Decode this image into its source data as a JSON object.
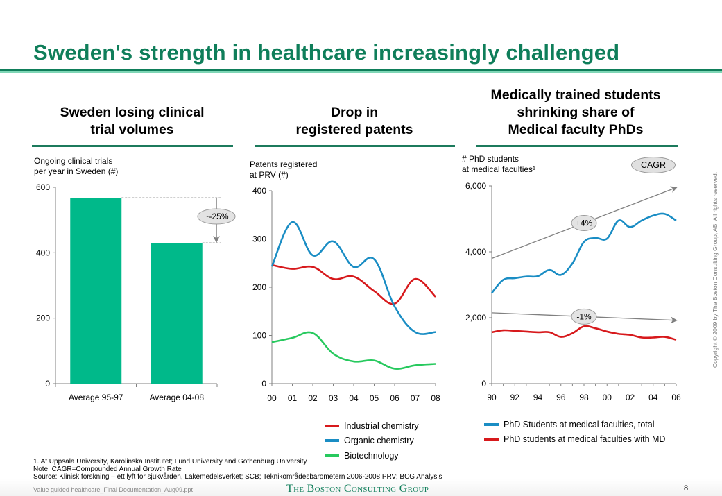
{
  "slide": {
    "title": "Sweden's strength in healthcare increasingly challenged",
    "page_number": "8",
    "file_name": "Value guided healthcare_Final Documentation_Aug09.ppt",
    "brand": "The Boston Consulting Group",
    "copyright": "Copyright © 2009 by The Boston Consulting Group, AB. All rights reserved.",
    "footnotes": [
      "1. At Uppsala University, Karolinska Institutet; Lund University and Gothenburg University",
      "Note: CAGR=Compounded Annual Growth Rate",
      "Source: Klinisk forskning – ett lyft för sjukvården, Läkemedelsverket; SCB; Teknikområdesbarometern 2006-2008 PRV; BCG Analysis"
    ],
    "colors": {
      "brand_green": "#0f7e5a",
      "bar_green": "#00b98a",
      "red": "#d7191c",
      "blue": "#1a8dc4",
      "green_line": "#27c95e"
    }
  },
  "panels": [
    {
      "heading_line1": "Sweden losing clinical",
      "heading_line2": "trial volumes",
      "ylabel_line1": "Ongoing clinical trials",
      "ylabel_line2": "per year in Sweden (#)"
    },
    {
      "heading_line1": "Drop in",
      "heading_line2": "registered patents",
      "ylabel_line1": "Patents registered",
      "ylabel_line2": "at PRV (#)"
    },
    {
      "heading_line1": "Medically trained students",
      "heading_line2": "shrinking share of",
      "heading_line3": "Medical faculty PhDs",
      "ylabel_line1": "# PhD students",
      "ylabel_line2": "at medical faculties¹",
      "cagr_label": "CAGR"
    }
  ],
  "chart_data": [
    {
      "type": "bar",
      "title": "Sweden losing clinical trial volumes",
      "ylabel": "Ongoing clinical trials per year in Sweden (#)",
      "categories": [
        "Average 95-97",
        "Average 04-08"
      ],
      "values": [
        568,
        430
      ],
      "ylim": [
        0,
        600
      ],
      "yticks": [
        0,
        200,
        400,
        600
      ],
      "ytick_labels": [
        "0",
        "200",
        "400",
        "600"
      ],
      "annotation": "~-25%",
      "grid": false
    },
    {
      "type": "line",
      "title": "Drop in registered patents",
      "ylabel": "Patents registered at PRV (#)",
      "x": [
        "00",
        "01",
        "02",
        "03",
        "04",
        "05",
        "06",
        "07",
        "08"
      ],
      "series": [
        {
          "name": "Industrial chemistry",
          "color": "#d7191c",
          "values": [
            246,
            238,
            242,
            217,
            222,
            192,
            166,
            217,
            180
          ]
        },
        {
          "name": "Organic chemistry",
          "color": "#1a8dc4",
          "values": [
            243,
            335,
            266,
            295,
            242,
            258,
            160,
            107,
            107
          ]
        },
        {
          "name": "Biotechnology",
          "color": "#27c95e",
          "values": [
            86,
            95,
            105,
            62,
            46,
            48,
            31,
            38,
            41
          ]
        }
      ],
      "ylim": [
        0,
        400
      ],
      "yticks": [
        0,
        100,
        200,
        300,
        400
      ],
      "ytick_labels": [
        "0",
        "100",
        "200",
        "300",
        "400"
      ],
      "legend": "bottom",
      "grid": false
    },
    {
      "type": "line",
      "title": "Medically trained students shrinking share of Medical faculty PhDs",
      "ylabel": "# PhD students at medical faculties¹",
      "x": [
        "90",
        "91",
        "92",
        "93",
        "94",
        "95",
        "96",
        "97",
        "98",
        "99",
        "00",
        "01",
        "02",
        "03",
        "04",
        "05",
        "06"
      ],
      "xtick_labels": [
        "90",
        "92",
        "94",
        "96",
        "98",
        "00",
        "02",
        "04",
        "06"
      ],
      "series": [
        {
          "name": "PhD Students at medical faculties, total",
          "color": "#1a8dc4",
          "values": [
            2750,
            3150,
            3200,
            3250,
            3260,
            3450,
            3300,
            3650,
            4300,
            4420,
            4400,
            4950,
            4750,
            4950,
            5100,
            5150,
            4950
          ]
        },
        {
          "name": "PhD students at medical faculties with MD",
          "color": "#d7191c",
          "values": [
            1560,
            1620,
            1600,
            1580,
            1560,
            1560,
            1420,
            1530,
            1740,
            1680,
            1580,
            1510,
            1480,
            1400,
            1400,
            1420,
            1330
          ]
        }
      ],
      "trend_arrows": [
        {
          "label": "+4%",
          "from": 3800,
          "to": 5950
        },
        {
          "label": "-1%",
          "from": 2150,
          "to": 1920
        }
      ],
      "ylim": [
        0,
        6000
      ],
      "yticks": [
        0,
        2000,
        4000,
        6000
      ],
      "ytick_labels": [
        "0",
        "2,000",
        "4,000",
        "6,000"
      ],
      "legend": "bottom",
      "grid": false
    }
  ]
}
